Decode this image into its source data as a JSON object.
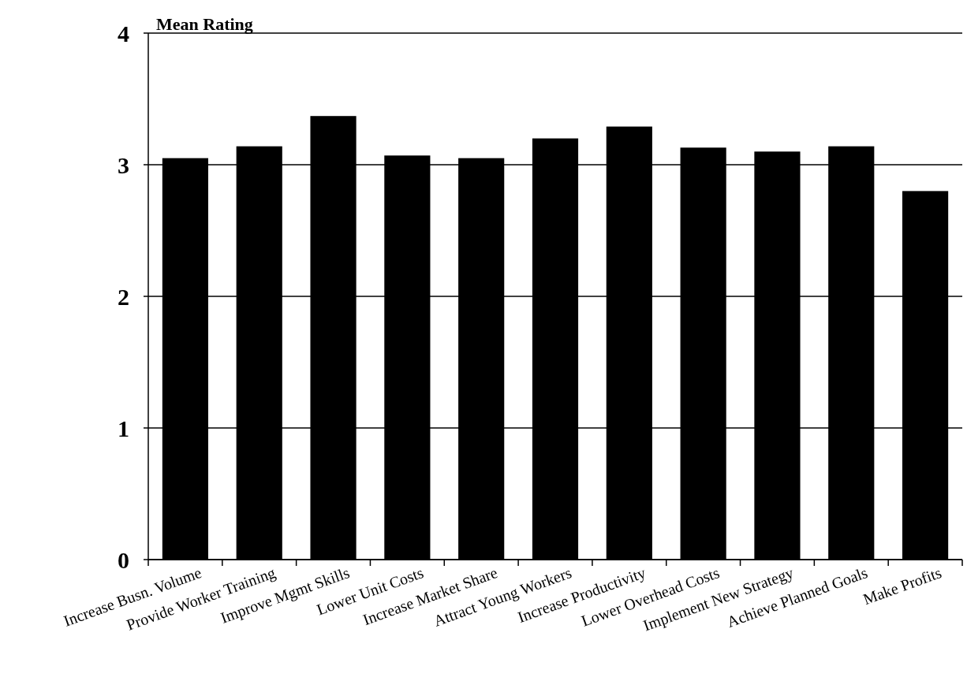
{
  "chart_data": {
    "type": "bar",
    "ylabel": "Mean Rating",
    "categories": [
      "Increase Busn. Volume",
      "Provide Worker Training",
      "Improve Mgmt Skills",
      "Lower Unit Costs",
      "Increase Market Share",
      "Attract Young Workers",
      "Increase Productivity",
      "Lower Overhead Costs",
      "Implement New Strategy",
      "Achieve Planned Goals",
      "Make Profits"
    ],
    "values": [
      3.05,
      3.14,
      3.37,
      3.07,
      3.05,
      3.2,
      3.29,
      3.13,
      3.1,
      3.14,
      2.8
    ],
    "color": "#000000",
    "ylim": [
      0,
      4
    ],
    "yticks": [
      0,
      1,
      2,
      3,
      4
    ],
    "grid": "y"
  }
}
